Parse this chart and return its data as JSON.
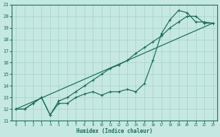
{
  "xlabel": "Humidex (Indice chaleur)",
  "bg_color": "#c5e8e2",
  "line_color": "#1a6b5a",
  "grid_color": "#aad4cc",
  "xlim": [
    -0.5,
    23.5
  ],
  "ylim": [
    11,
    21
  ],
  "xticks": [
    0,
    1,
    2,
    3,
    4,
    5,
    6,
    7,
    8,
    9,
    10,
    11,
    12,
    13,
    14,
    15,
    16,
    17,
    18,
    19,
    20,
    21,
    22,
    23
  ],
  "yticks": [
    11,
    12,
    13,
    14,
    15,
    16,
    17,
    18,
    19,
    20,
    21
  ],
  "line1_x": [
    0,
    1,
    2,
    3,
    4,
    5,
    6,
    7,
    8,
    9,
    10,
    11,
    12,
    13,
    14,
    15,
    16,
    17,
    18,
    19,
    20,
    21,
    22,
    23
  ],
  "line1_y": [
    12.0,
    12.0,
    12.5,
    13.0,
    11.5,
    12.5,
    12.5,
    13.0,
    13.3,
    13.5,
    13.2,
    13.5,
    13.5,
    13.7,
    13.5,
    14.2,
    16.2,
    18.5,
    19.7,
    20.5,
    20.3,
    19.5,
    19.5,
    19.4
  ],
  "line2_x": [
    0,
    1,
    2,
    3,
    4,
    5,
    6,
    7,
    8,
    9,
    10,
    11,
    12,
    13,
    14,
    15,
    16,
    17,
    18,
    19,
    20,
    21,
    22,
    23
  ],
  "line2_y": [
    12.0,
    12.0,
    12.5,
    13.0,
    11.5,
    12.7,
    13.0,
    13.5,
    14.0,
    14.5,
    15.0,
    15.5,
    15.8,
    16.2,
    16.8,
    17.3,
    17.8,
    18.3,
    19.0,
    19.5,
    20.0,
    20.0,
    19.4,
    19.4
  ],
  "line3_x": [
    0,
    23
  ],
  "line3_y": [
    12.0,
    19.4
  ]
}
